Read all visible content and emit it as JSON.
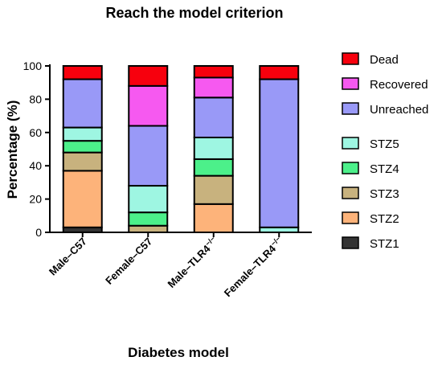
{
  "chart_data": {
    "type": "bar",
    "stacked": true,
    "title": "Reach the model criterion",
    "xlabel": "Diabetes model",
    "ylabel": "Percentage (%)",
    "ylim": [
      0,
      100
    ],
    "yticks": [
      "0",
      "20",
      "40",
      "60",
      "80",
      "100"
    ],
    "categories": [
      "Male–C57",
      "Female–C57",
      "Male–TLR4",
      "Female–TLR4"
    ],
    "category_superscript": [
      "",
      "",
      "−/−",
      "−/−"
    ],
    "legend_position": "right",
    "series": [
      {
        "name": "STZ1",
        "color": "#333333",
        "values": [
          3,
          0,
          0,
          0
        ]
      },
      {
        "name": "STZ2",
        "color": "#FDB37A",
        "values": [
          34,
          0,
          17,
          0
        ]
      },
      {
        "name": "STZ3",
        "color": "#C8B27E",
        "values": [
          11,
          4,
          17,
          0
        ]
      },
      {
        "name": "STZ4",
        "color": "#4CF08A",
        "values": [
          7,
          8,
          10,
          0
        ]
      },
      {
        "name": "STZ5",
        "color": "#9EF6E2",
        "values": [
          8,
          16,
          13,
          3
        ]
      },
      {
        "name": "Unreached",
        "color": "#9999F7",
        "values": [
          29,
          36,
          24,
          89
        ]
      },
      {
        "name": "Recovered",
        "color": "#F659F0",
        "values": [
          0,
          24,
          12,
          0
        ]
      },
      {
        "name": "Dead",
        "color": "#F7000D",
        "values": [
          8,
          12,
          7,
          8
        ]
      }
    ],
    "legend_order": [
      "Dead",
      "Recovered",
      "Unreached",
      "STZ5",
      "STZ4",
      "STZ3",
      "STZ2",
      "STZ1"
    ]
  }
}
